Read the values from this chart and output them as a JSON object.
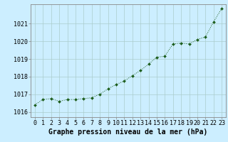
{
  "x": [
    0,
    1,
    2,
    3,
    4,
    5,
    6,
    7,
    8,
    9,
    10,
    11,
    12,
    13,
    14,
    15,
    16,
    17,
    18,
    19,
    20,
    21,
    22,
    23
  ],
  "y": [
    1016.4,
    1016.7,
    1016.75,
    1016.6,
    1016.7,
    1016.7,
    1016.75,
    1016.8,
    1017.0,
    1017.3,
    1017.55,
    1017.75,
    1018.05,
    1018.35,
    1018.7,
    1019.1,
    1019.15,
    1019.85,
    1019.9,
    1019.85,
    1020.1,
    1020.25,
    1021.1,
    1021.85
  ],
  "xlim": [
    -0.5,
    23.5
  ],
  "ylim": [
    1015.7,
    1022.1
  ],
  "yticks": [
    1016,
    1017,
    1018,
    1019,
    1020,
    1021
  ],
  "xticks": [
    0,
    1,
    2,
    3,
    4,
    5,
    6,
    7,
    8,
    9,
    10,
    11,
    12,
    13,
    14,
    15,
    16,
    17,
    18,
    19,
    20,
    21,
    22,
    23
  ],
  "xlabel": "Graphe pression niveau de la mer (hPa)",
  "line_color": "#1a5c1a",
  "marker": "D",
  "marker_size": 2.0,
  "bg_color": "#cceeff",
  "grid_color": "#aacccc",
  "border_color": "#888888",
  "xlabel_fontsize": 7,
  "tick_fontsize": 6,
  "line_width": 0.7
}
